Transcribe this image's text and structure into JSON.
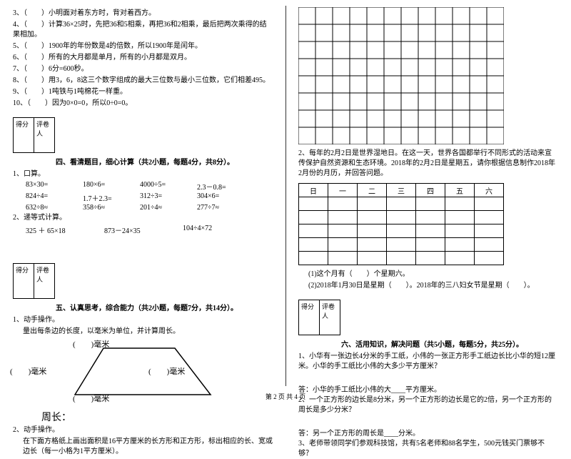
{
  "left": {
    "tf": [
      "3、（　　）小明面对着东方时，背对着西方。",
      "4、（　　）计算36×25时，先把36和5相乘，再把36和2相乘，最后把两次乘得的结果相加。",
      "5、（　　）1900年的年份数是4的倍数，所以1900年是闰年。",
      "6、（　　）所有的大月都是单月，所有的小月都是双月。",
      "7、（　　）6分=600秒。",
      "8、（　　）用3，6，8这三个数字组成的最大三位数与最小三位数，它们相差495。",
      "9、（　　）1吨铁与1吨棉花一样重。",
      "10、（　　）因为0×0=0，所以0÷0=0。"
    ],
    "scorer": {
      "c1": "得分",
      "c2": "评卷人"
    },
    "sect4": "四、看清题目，细心计算（共2小题，每题4分，共8分）。",
    "calc1_label": "1、口算。",
    "calc1": [
      [
        "83×30=",
        "180×6=",
        "4000÷5=",
        "2.3－0.8="
      ],
      [
        "824÷4=",
        "1.7＋2.3=",
        "312÷3=",
        "304×6="
      ],
      [
        "632÷8≈",
        "358÷6≈",
        "201÷4≈",
        "277÷7≈"
      ]
    ],
    "calc2_label": "2、递等式计算。",
    "calc2": [
      "325 ＋ 65×18",
      "873－24×35",
      "104÷4×72"
    ],
    "sect5": "五、认真思考，综合能力（共2小题，每题7分，共14分）。",
    "op1_label": "1、动手操作。",
    "op1_text": "量出每条边的长度，以毫米为单位，并计算周长。",
    "mm": "毫米",
    "zhou": "周长：",
    "op2_label": "2、动手操作。",
    "op2_text": "在下面方格纸上画出面积是16平方厘米的长方形和正方形，标出相应的长、宽或边长（每一小格为1平方厘米）。"
  },
  "right": {
    "grid": {
      "cols": 12,
      "rows": 8,
      "cell": 24,
      "stroke": "#000"
    },
    "wetland": "2、每年的2月2日是世界湿地日。在这一天，世界各国都举行不同形式的活动来宣传保护自然资源和生态环境。2018年的2月2日是星期五，请你根据信息制作2018年2月份的月历，并回答问题。",
    "cal_head": [
      "日",
      "一",
      "二",
      "三",
      "四",
      "五",
      "六"
    ],
    "q1": "(1)这个月有（　　）个星期六。",
    "q2": "(2)2018年1月30日是星期（　　）。2018年的三八妇女节是星期（　　）。",
    "scorer": {
      "c1": "得分",
      "c2": "评卷人"
    },
    "sect6": "六、活用知识，解决问题（共5小题，每题5分，共25分）。",
    "p1": "1、小华有一张边长4分米的手工纸，小伟的一张正方形手工纸边长比小华的短12厘米。小华的手工纸比小伟的大多少平方厘米？",
    "p1a": "答：小华的手工纸比小伟的大____平方厘米。",
    "p2": "2、一个正方形的边长是8分米，另一个正方形的边长是它的2倍，另一个正方形的周长是多少分米？",
    "p2a": "答：另一个正方形的周长是____分米。",
    "p3": "3、老师带领同学们参观科技馆，共有5名老师和88名学生，500元钱买门票够不够？"
  },
  "footer": "第 2 页 共 4 页"
}
